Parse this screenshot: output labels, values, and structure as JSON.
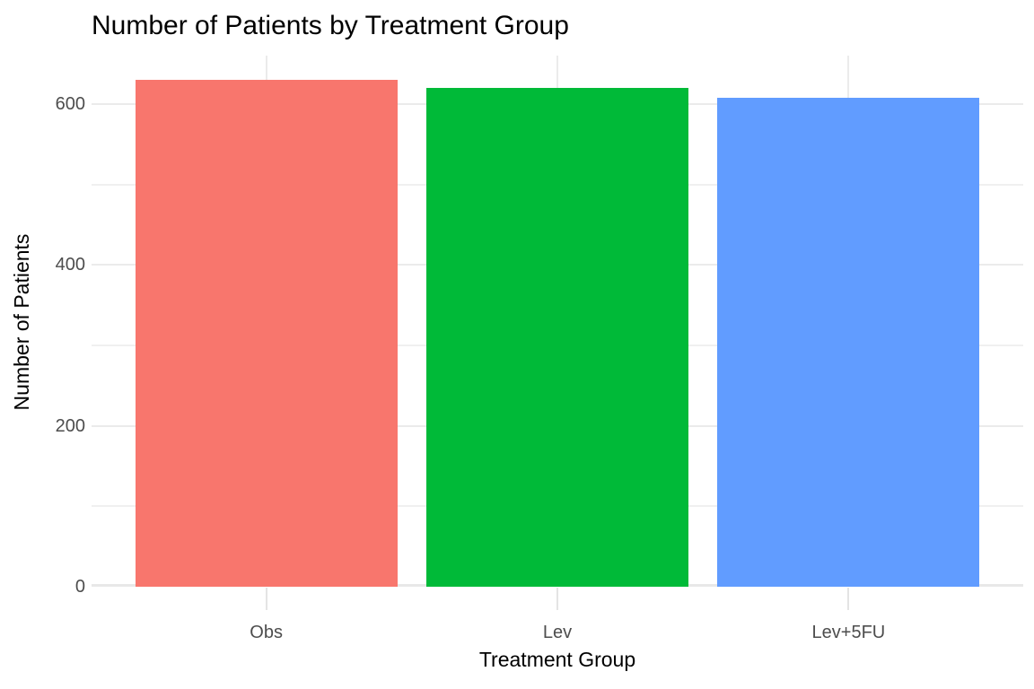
{
  "chart_data": {
    "type": "bar",
    "title": "Number of Patients by Treatment Group",
    "xlabel": "Treatment Group",
    "ylabel": "Number of Patients",
    "categories": [
      "Obs",
      "Lev",
      "Lev+5FU"
    ],
    "values": [
      630,
      620,
      608
    ],
    "bar_colors": [
      "#F8766D",
      "#00BA38",
      "#619CFF"
    ],
    "y_major_ticks": [
      0,
      200,
      400,
      600
    ],
    "y_minor_gridlines": [
      100,
      300,
      500
    ],
    "ylim": [
      0,
      660
    ],
    "legend": "none",
    "grid": "on",
    "background_color": "#FFFFFF",
    "major_grid_color": "#EBEBEB",
    "minor_grid_color": "#F0F0F0",
    "zero_line_color": "#E8E8E8",
    "axis_tick_color": "#E4E4E4",
    "axis_text_color": "#4D4D4D",
    "title_color": "#000000"
  }
}
